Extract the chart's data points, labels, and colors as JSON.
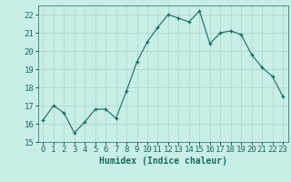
{
  "x": [
    0,
    1,
    2,
    3,
    4,
    5,
    6,
    7,
    8,
    9,
    10,
    11,
    12,
    13,
    14,
    15,
    16,
    17,
    18,
    19,
    20,
    21,
    22,
    23
  ],
  "y": [
    16.2,
    17.0,
    16.6,
    15.5,
    16.1,
    16.8,
    16.8,
    16.3,
    17.8,
    19.4,
    20.5,
    21.3,
    22.0,
    21.8,
    21.6,
    22.2,
    20.4,
    21.0,
    21.1,
    20.9,
    19.8,
    19.1,
    18.6,
    17.5
  ],
  "xlabel": "Humidex (Indice chaleur)",
  "ylabel": "",
  "xlim": [
    -0.5,
    23.5
  ],
  "ylim": [
    15,
    22.5
  ],
  "yticks": [
    15,
    16,
    17,
    18,
    19,
    20,
    21,
    22
  ],
  "xticks": [
    0,
    1,
    2,
    3,
    4,
    5,
    6,
    7,
    8,
    9,
    10,
    11,
    12,
    13,
    14,
    15,
    16,
    17,
    18,
    19,
    20,
    21,
    22,
    23
  ],
  "line_color": "#1a6b5a",
  "marker": "+",
  "bg_color": "#c8eee8",
  "grid_color": "#b0d8d0",
  "label_fontsize": 7,
  "tick_fontsize": 6.5
}
